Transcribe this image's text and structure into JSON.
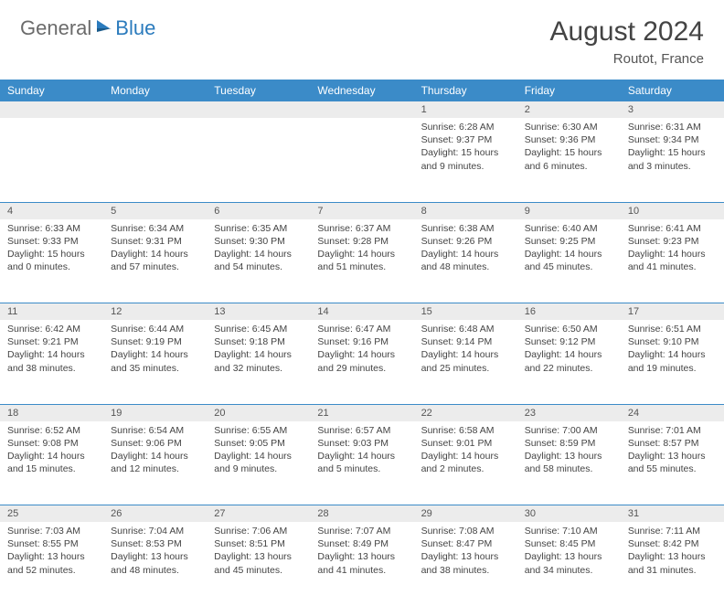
{
  "brand": {
    "text1": "General",
    "text2": "Blue"
  },
  "title": "August 2024",
  "location": "Routot, France",
  "colors": {
    "header_bg": "#3b8bc8",
    "daynum_bg": "#ececec",
    "rule": "#3b8bc8"
  },
  "day_headers": [
    "Sunday",
    "Monday",
    "Tuesday",
    "Wednesday",
    "Thursday",
    "Friday",
    "Saturday"
  ],
  "weeks": [
    [
      null,
      null,
      null,
      null,
      {
        "n": "1",
        "sr": "Sunrise: 6:28 AM",
        "ss": "Sunset: 9:37 PM",
        "dl": "Daylight: 15 hours and 9 minutes."
      },
      {
        "n": "2",
        "sr": "Sunrise: 6:30 AM",
        "ss": "Sunset: 9:36 PM",
        "dl": "Daylight: 15 hours and 6 minutes."
      },
      {
        "n": "3",
        "sr": "Sunrise: 6:31 AM",
        "ss": "Sunset: 9:34 PM",
        "dl": "Daylight: 15 hours and 3 minutes."
      }
    ],
    [
      {
        "n": "4",
        "sr": "Sunrise: 6:33 AM",
        "ss": "Sunset: 9:33 PM",
        "dl": "Daylight: 15 hours and 0 minutes."
      },
      {
        "n": "5",
        "sr": "Sunrise: 6:34 AM",
        "ss": "Sunset: 9:31 PM",
        "dl": "Daylight: 14 hours and 57 minutes."
      },
      {
        "n": "6",
        "sr": "Sunrise: 6:35 AM",
        "ss": "Sunset: 9:30 PM",
        "dl": "Daylight: 14 hours and 54 minutes."
      },
      {
        "n": "7",
        "sr": "Sunrise: 6:37 AM",
        "ss": "Sunset: 9:28 PM",
        "dl": "Daylight: 14 hours and 51 minutes."
      },
      {
        "n": "8",
        "sr": "Sunrise: 6:38 AM",
        "ss": "Sunset: 9:26 PM",
        "dl": "Daylight: 14 hours and 48 minutes."
      },
      {
        "n": "9",
        "sr": "Sunrise: 6:40 AM",
        "ss": "Sunset: 9:25 PM",
        "dl": "Daylight: 14 hours and 45 minutes."
      },
      {
        "n": "10",
        "sr": "Sunrise: 6:41 AM",
        "ss": "Sunset: 9:23 PM",
        "dl": "Daylight: 14 hours and 41 minutes."
      }
    ],
    [
      {
        "n": "11",
        "sr": "Sunrise: 6:42 AM",
        "ss": "Sunset: 9:21 PM",
        "dl": "Daylight: 14 hours and 38 minutes."
      },
      {
        "n": "12",
        "sr": "Sunrise: 6:44 AM",
        "ss": "Sunset: 9:19 PM",
        "dl": "Daylight: 14 hours and 35 minutes."
      },
      {
        "n": "13",
        "sr": "Sunrise: 6:45 AM",
        "ss": "Sunset: 9:18 PM",
        "dl": "Daylight: 14 hours and 32 minutes."
      },
      {
        "n": "14",
        "sr": "Sunrise: 6:47 AM",
        "ss": "Sunset: 9:16 PM",
        "dl": "Daylight: 14 hours and 29 minutes."
      },
      {
        "n": "15",
        "sr": "Sunrise: 6:48 AM",
        "ss": "Sunset: 9:14 PM",
        "dl": "Daylight: 14 hours and 25 minutes."
      },
      {
        "n": "16",
        "sr": "Sunrise: 6:50 AM",
        "ss": "Sunset: 9:12 PM",
        "dl": "Daylight: 14 hours and 22 minutes."
      },
      {
        "n": "17",
        "sr": "Sunrise: 6:51 AM",
        "ss": "Sunset: 9:10 PM",
        "dl": "Daylight: 14 hours and 19 minutes."
      }
    ],
    [
      {
        "n": "18",
        "sr": "Sunrise: 6:52 AM",
        "ss": "Sunset: 9:08 PM",
        "dl": "Daylight: 14 hours and 15 minutes."
      },
      {
        "n": "19",
        "sr": "Sunrise: 6:54 AM",
        "ss": "Sunset: 9:06 PM",
        "dl": "Daylight: 14 hours and 12 minutes."
      },
      {
        "n": "20",
        "sr": "Sunrise: 6:55 AM",
        "ss": "Sunset: 9:05 PM",
        "dl": "Daylight: 14 hours and 9 minutes."
      },
      {
        "n": "21",
        "sr": "Sunrise: 6:57 AM",
        "ss": "Sunset: 9:03 PM",
        "dl": "Daylight: 14 hours and 5 minutes."
      },
      {
        "n": "22",
        "sr": "Sunrise: 6:58 AM",
        "ss": "Sunset: 9:01 PM",
        "dl": "Daylight: 14 hours and 2 minutes."
      },
      {
        "n": "23",
        "sr": "Sunrise: 7:00 AM",
        "ss": "Sunset: 8:59 PM",
        "dl": "Daylight: 13 hours and 58 minutes."
      },
      {
        "n": "24",
        "sr": "Sunrise: 7:01 AM",
        "ss": "Sunset: 8:57 PM",
        "dl": "Daylight: 13 hours and 55 minutes."
      }
    ],
    [
      {
        "n": "25",
        "sr": "Sunrise: 7:03 AM",
        "ss": "Sunset: 8:55 PM",
        "dl": "Daylight: 13 hours and 52 minutes."
      },
      {
        "n": "26",
        "sr": "Sunrise: 7:04 AM",
        "ss": "Sunset: 8:53 PM",
        "dl": "Daylight: 13 hours and 48 minutes."
      },
      {
        "n": "27",
        "sr": "Sunrise: 7:06 AM",
        "ss": "Sunset: 8:51 PM",
        "dl": "Daylight: 13 hours and 45 minutes."
      },
      {
        "n": "28",
        "sr": "Sunrise: 7:07 AM",
        "ss": "Sunset: 8:49 PM",
        "dl": "Daylight: 13 hours and 41 minutes."
      },
      {
        "n": "29",
        "sr": "Sunrise: 7:08 AM",
        "ss": "Sunset: 8:47 PM",
        "dl": "Daylight: 13 hours and 38 minutes."
      },
      {
        "n": "30",
        "sr": "Sunrise: 7:10 AM",
        "ss": "Sunset: 8:45 PM",
        "dl": "Daylight: 13 hours and 34 minutes."
      },
      {
        "n": "31",
        "sr": "Sunrise: 7:11 AM",
        "ss": "Sunset: 8:42 PM",
        "dl": "Daylight: 13 hours and 31 minutes."
      }
    ]
  ]
}
